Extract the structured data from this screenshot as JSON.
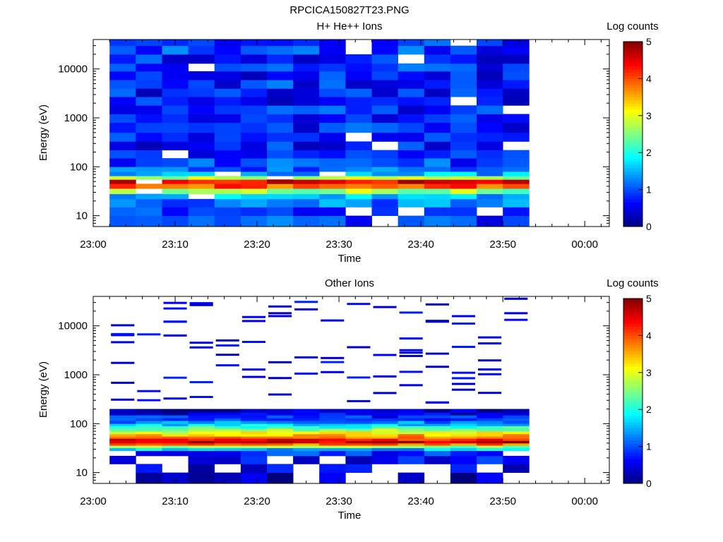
{
  "figure": {
    "title": "RPCICA150827T23.PNG"
  },
  "colorbar": {
    "label": "Log counts",
    "ticks": [
      "0",
      "1",
      "2",
      "3",
      "4",
      "5"
    ],
    "range": [
      0,
      5
    ],
    "colormap": [
      "#00007f",
      "#0000ff",
      "#0080ff",
      "#00ffff",
      "#80ff80",
      "#ffff00",
      "#ff8000",
      "#ff0000",
      "#7f0000"
    ]
  },
  "chart_data": [
    {
      "type": "heatmap",
      "title": "H+ He++ Ions",
      "xlabel": "Time",
      "ylabel": "Energy (eV)",
      "yscale": "log",
      "ylim": [
        6,
        40000
      ],
      "xlim": [
        "23:00",
        "00:03"
      ],
      "xticks": [
        "23:00",
        "23:10",
        "23:20",
        "23:30",
        "23:40",
        "23:50",
        "00:00"
      ],
      "yticks": [
        "10",
        "100",
        "1000",
        "10000"
      ],
      "time_columns_min": [
        2,
        5.2,
        8.4,
        11.6,
        14.8,
        18,
        21.2,
        24.4,
        27.6,
        30.8,
        34,
        37.2,
        40.4,
        43.6,
        46.8,
        50,
        53.2
      ],
      "energy_bins_eV": [
        6,
        10,
        15,
        22,
        28,
        36,
        45,
        55,
        65,
        80,
        100,
        150,
        220,
        330,
        500,
        800,
        1200,
        1800,
        2700,
        4000,
        6000,
        9000,
        13000,
        20000,
        30000,
        40000
      ],
      "z_profile_log_counts": [
        0.9,
        1.0,
        1.2,
        1.5,
        2.6,
        4.0,
        4.5,
        2.8,
        1.5,
        1.1,
        0.9,
        0.8,
        0.7,
        0.7,
        0.8,
        0.7,
        0.8,
        0.7,
        0.7,
        0.8,
        0.7,
        0.8,
        0.7,
        0.9,
        0.8
      ]
    },
    {
      "type": "heatmap",
      "title": "Other Ions",
      "xlabel": "Time",
      "ylabel": "Energy (eV)",
      "yscale": "log",
      "ylim": [
        6,
        40000
      ],
      "xlim": [
        "23:00",
        "00:03"
      ],
      "xticks": [
        "23:00",
        "23:10",
        "23:20",
        "23:30",
        "23:40",
        "23:50",
        "00:00"
      ],
      "yticks": [
        "10",
        "100",
        "1000",
        "10000"
      ],
      "time_columns_min": [
        2,
        5.2,
        8.4,
        11.6,
        14.8,
        18,
        21.2,
        24.4,
        27.6,
        30.8,
        34,
        37.2,
        40.4,
        43.6,
        46.8,
        50,
        53.2
      ],
      "energy_bins_eV": [
        6,
        10,
        15,
        22,
        28,
        32,
        36,
        40,
        45,
        50,
        55,
        62,
        70,
        80,
        90,
        100,
        115,
        130,
        150,
        170,
        200
      ],
      "z_profile_log_counts": [
        0.3,
        0.5,
        0.6,
        0.8,
        1.6,
        2.6,
        3.8,
        4.6,
        4.3,
        3.9,
        3.5,
        3.0,
        2.6,
        2.1,
        1.7,
        1.3,
        1.0,
        0.8,
        0.5,
        0.3
      ]
    }
  ]
}
